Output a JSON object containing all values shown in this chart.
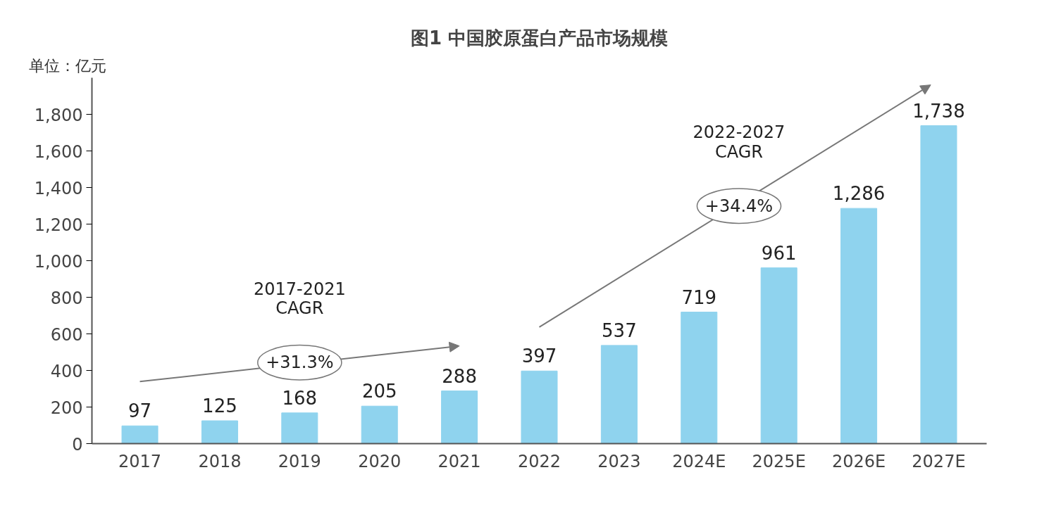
{
  "chart_data": {
    "type": "bar",
    "title": "图1 中国胶原蛋白产品市场规模",
    "ylabel": "单位：亿元",
    "categories": [
      "2017",
      "2018",
      "2019",
      "2020",
      "2021",
      "2022",
      "2023",
      "2024E",
      "2025E",
      "2026E",
      "2027E"
    ],
    "values": [
      97,
      125,
      168,
      205,
      288,
      397,
      537,
      719,
      961,
      1286,
      1738
    ],
    "value_labels": [
      "97",
      "125",
      "168",
      "205",
      "288",
      "397",
      "537",
      "719",
      "961",
      "1,286",
      "1,738"
    ],
    "color": "#8fd3ee",
    "ylim": [
      0,
      2000
    ],
    "yticks": [
      0,
      200,
      400,
      600,
      800,
      {
        "value": 1000,
        "label": "1,000"
      },
      {
        "value": 1200,
        "label": "1,200"
      },
      {
        "value": 1400,
        "label": "1,400"
      },
      {
        "value": 1600,
        "label": "1,600"
      },
      {
        "value": 1800,
        "label": "1,800"
      }
    ],
    "grid": false,
    "annotations": [
      "2017-2021 CAGR",
      "+31.3%",
      "2022-2027 CAGR",
      "+34.4%"
    ]
  }
}
